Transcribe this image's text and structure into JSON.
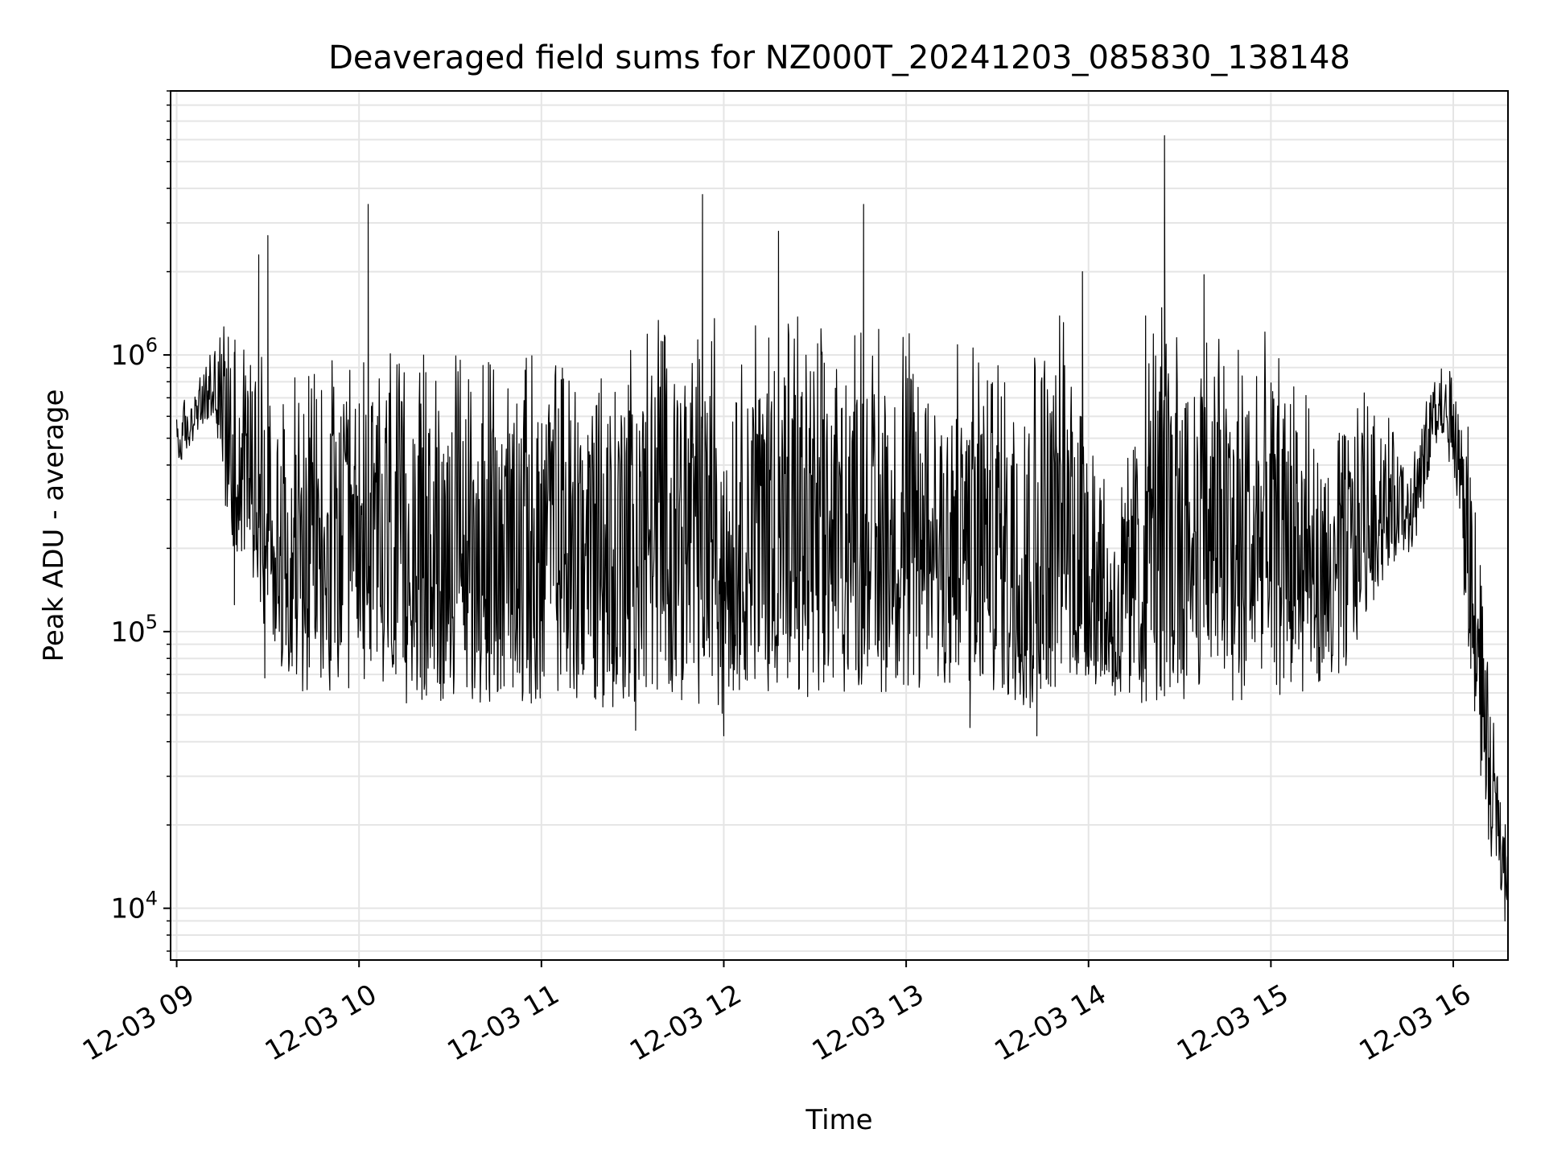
{
  "chart_data": {
    "type": "line",
    "title": "Deaveraged field sums for NZ000T_20241203_085830_138148",
    "xlabel": "Time",
    "ylabel": "Peak ADU - average",
    "yscale": "log",
    "ylim": [
      6500,
      9000000
    ],
    "xlim": [
      "2024-12-03 08:58",
      "2024-12-03 16:18"
    ],
    "x_ticks": [
      {
        "time": "2024-12-03 09:00",
        "label": "12-03 09"
      },
      {
        "time": "2024-12-03 10:00",
        "label": "12-03 10"
      },
      {
        "time": "2024-12-03 11:00",
        "label": "12-03 11"
      },
      {
        "time": "2024-12-03 12:00",
        "label": "12-03 12"
      },
      {
        "time": "2024-12-03 13:00",
        "label": "12-03 13"
      },
      {
        "time": "2024-12-03 14:00",
        "label": "12-03 14"
      },
      {
        "time": "2024-12-03 15:00",
        "label": "12-03 15"
      },
      {
        "time": "2024-12-03 16:00",
        "label": "12-03 16"
      }
    ],
    "y_ticks": [
      {
        "value": 10000,
        "base": "10",
        "exp": "4"
      },
      {
        "value": 100000,
        "base": "10",
        "exp": "5"
      },
      {
        "value": 1000000,
        "base": "10",
        "exp": "6"
      }
    ],
    "grid": true,
    "line_color": "#000000",
    "grid_color": "#e5e5e5",
    "series": [
      {
        "x": [
          "2024-12-03 09:00",
          "2024-12-03 09:06",
          "2024-12-03 09:12",
          "2024-12-03 09:18",
          "2024-12-03 09:24",
          "2024-12-03 09:30",
          "2024-12-03 09:36",
          "2024-12-03 09:42",
          "2024-12-03 09:48",
          "2024-12-03 09:54",
          "2024-12-03 10:00",
          "2024-12-03 10:06",
          "2024-12-03 10:12",
          "2024-12-03 10:18",
          "2024-12-03 10:24",
          "2024-12-03 10:30",
          "2024-12-03 10:36",
          "2024-12-03 10:42",
          "2024-12-03 10:48",
          "2024-12-03 10:54",
          "2024-12-03 11:00",
          "2024-12-03 11:06",
          "2024-12-03 11:12",
          "2024-12-03 11:18",
          "2024-12-03 11:24",
          "2024-12-03 11:30",
          "2024-12-03 11:36",
          "2024-12-03 11:42",
          "2024-12-03 11:48",
          "2024-12-03 11:54",
          "2024-12-03 12:00",
          "2024-12-03 12:06",
          "2024-12-03 12:12",
          "2024-12-03 12:18",
          "2024-12-03 12:24",
          "2024-12-03 12:30",
          "2024-12-03 12:36",
          "2024-12-03 12:42",
          "2024-12-03 12:48",
          "2024-12-03 12:54",
          "2024-12-03 13:00",
          "2024-12-03 13:06",
          "2024-12-03 13:12",
          "2024-12-03 13:18",
          "2024-12-03 13:24",
          "2024-12-03 13:30",
          "2024-12-03 13:36",
          "2024-12-03 13:42",
          "2024-12-03 13:48",
          "2024-12-03 13:54",
          "2024-12-03 14:00",
          "2024-12-03 14:06",
          "2024-12-03 14:12",
          "2024-12-03 14:18",
          "2024-12-03 14:24",
          "2024-12-03 14:30",
          "2024-12-03 14:36",
          "2024-12-03 14:42",
          "2024-12-03 14:48",
          "2024-12-03 14:54",
          "2024-12-03 15:00",
          "2024-12-03 15:06",
          "2024-12-03 15:12",
          "2024-12-03 15:18",
          "2024-12-03 15:24",
          "2024-12-03 15:30",
          "2024-12-03 15:36",
          "2024-12-03 15:42",
          "2024-12-03 15:48",
          "2024-12-03 15:54",
          "2024-12-03 16:00",
          "2024-12-03 16:06",
          "2024-12-03 16:12",
          "2024-12-03 16:18"
        ],
        "low": [
          380000,
          500000,
          600000,
          200000,
          180000,
          90000,
          70000,
          60000,
          55000,
          55000,
          55000,
          60000,
          55000,
          55000,
          55000,
          55000,
          55000,
          55000,
          55000,
          55000,
          55000,
          60000,
          55000,
          55000,
          50000,
          48000,
          55000,
          60000,
          55000,
          55000,
          50000,
          60000,
          60000,
          60000,
          55000,
          60000,
          60000,
          60000,
          60000,
          60000,
          60000,
          60000,
          60000,
          60000,
          55000,
          55000,
          55000,
          50000,
          55000,
          55000,
          60000,
          60000,
          55000,
          52000,
          55000,
          55000,
          60000,
          60000,
          55000,
          55000,
          55000,
          60000,
          60000,
          65000,
          70000,
          100000,
          150000,
          180000,
          200000,
          450000,
          400000,
          60000,
          15000,
          10000
        ],
        "high": [
          650000,
          750000,
          1100000,
          1600000,
          1500000,
          800000,
          900000,
          900000,
          1000000,
          1000000,
          1100000,
          1100000,
          1100000,
          1000000,
          1000000,
          1000000,
          1000000,
          1000000,
          1000000,
          1000000,
          1100000,
          1100000,
          1100000,
          1200000,
          1100000,
          1200000,
          1400000,
          1500000,
          1500000,
          1500000,
          1300000,
          1300000,
          1300000,
          1400000,
          1400000,
          1300000,
          1200000,
          1300000,
          1300000,
          1300000,
          1200000,
          1200000,
          1100000,
          1100000,
          1100000,
          1100000,
          1100000,
          1200000,
          1400000,
          1500000,
          1100000,
          300000,
          350000,
          1400000,
          1500000,
          1400000,
          1400000,
          1400000,
          1300000,
          1300000,
          1200000,
          1100000,
          700000,
          350000,
          600000,
          800000,
          700000,
          500000,
          500000,
          950000,
          900000,
          500000,
          60000,
          18000
        ]
      }
    ],
    "spikes": [
      {
        "time": "2024-12-03 09:27",
        "value": 2300000
      },
      {
        "time": "2024-12-03 09:30",
        "value": 2700000
      },
      {
        "time": "2024-12-03 10:03",
        "value": 3500000
      },
      {
        "time": "2024-12-03 11:53",
        "value": 3800000
      },
      {
        "time": "2024-12-03 12:18",
        "value": 2800000
      },
      {
        "time": "2024-12-03 12:46",
        "value": 3500000
      },
      {
        "time": "2024-12-03 14:25",
        "value": 6200000
      },
      {
        "time": "2024-12-03 14:38",
        "value": 1950000
      },
      {
        "time": "2024-12-03 13:58",
        "value": 2000000
      }
    ],
    "dips": [
      {
        "time": "2024-12-03 09:19",
        "value": 125000
      },
      {
        "time": "2024-12-03 09:29",
        "value": 68000
      },
      {
        "time": "2024-12-03 11:31",
        "value": 44000
      },
      {
        "time": "2024-12-03 12:00",
        "value": 42000
      },
      {
        "time": "2024-12-03 13:21",
        "value": 45000
      },
      {
        "time": "2024-12-03 13:43",
        "value": 42000
      },
      {
        "time": "2024-12-03 16:17",
        "value": 9000
      }
    ]
  }
}
